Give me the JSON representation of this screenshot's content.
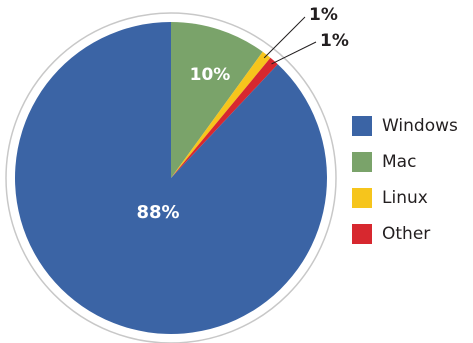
{
  "chart_data": {
    "type": "pie",
    "categories": [
      "Windows",
      "Mac",
      "Linux",
      "Other"
    ],
    "values": [
      88,
      10,
      1,
      1
    ],
    "slice_labels": [
      "88%",
      "10%",
      "1%",
      "1%"
    ],
    "colors": [
      "#3b64a5",
      "#7aa36a",
      "#f6c51c",
      "#d7282f"
    ],
    "title": "",
    "legend": {
      "position": "right",
      "entries": [
        "Windows",
        "Mac",
        "Linux",
        "Other"
      ]
    },
    "start_angle": "top, clockwise, Mac first",
    "outline_color": "#c8c8c8"
  }
}
